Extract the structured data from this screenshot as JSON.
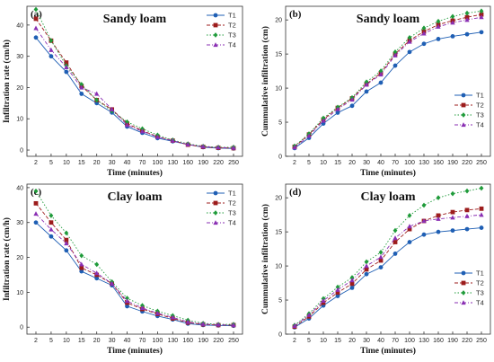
{
  "figure": {
    "panels_order": [
      "a",
      "b",
      "c",
      "d"
    ]
  },
  "chart_data": [
    {
      "id": "a",
      "letter": "(a)",
      "type": "line",
      "title": "Sandy loam",
      "xlabel": "Time (minutes)",
      "ylabel": "Infiltration rate (cm/h)",
      "categories": [
        "2",
        "5",
        "10",
        "15",
        "20",
        "30",
        "40",
        "70",
        "100",
        "130",
        "160",
        "190",
        "220",
        "250"
      ],
      "ylim": [
        -2,
        46
      ],
      "yticks": [
        0,
        10,
        20,
        30,
        40
      ],
      "grid": false,
      "legend": "top-right",
      "series": [
        {
          "name": "T1",
          "color": "#1f5fb4",
          "marker": "circle",
          "dash": "solid",
          "values": [
            36,
            30,
            25,
            18,
            15,
            12,
            7.5,
            5.5,
            3.8,
            2.8,
            1.8,
            0.9,
            0.6,
            0.5
          ]
        },
        {
          "name": "T2",
          "color": "#9c1c1c",
          "marker": "square",
          "dash": "dash",
          "values": [
            42,
            35,
            28,
            20.5,
            16,
            13,
            8.5,
            6.2,
            4.3,
            3.0,
            1.7,
            1.0,
            0.7,
            0.6
          ]
        },
        {
          "name": "T3",
          "color": "#1f9b3a",
          "marker": "diamond",
          "dash": "dot",
          "values": [
            45,
            35,
            27,
            21,
            16,
            12.5,
            9,
            6.8,
            4.8,
            3.2,
            2.0,
            1.2,
            0.9,
            0.9
          ]
        },
        {
          "name": "T4",
          "color": "#8a2fb3",
          "marker": "triangle",
          "dash": "dashdot",
          "values": [
            39,
            32,
            26.5,
            20,
            18,
            13,
            8,
            6.0,
            4.2,
            3.0,
            1.8,
            1.1,
            0.8,
            0.7
          ]
        }
      ]
    },
    {
      "id": "b",
      "letter": "(b)",
      "type": "line",
      "title": "Sandy loam",
      "xlabel": "Time (minutes)",
      "ylabel": "Cummulative infiltration (cm)",
      "categories": [
        "2",
        "5",
        "10",
        "15",
        "20",
        "30",
        "40",
        "70",
        "100",
        "130",
        "160",
        "190",
        "220",
        "250"
      ],
      "ylim": [
        0,
        22
      ],
      "yticks": [
        0,
        5,
        10,
        15,
        20
      ],
      "grid": false,
      "legend": "bottom-right",
      "series": [
        {
          "name": "T1",
          "color": "#1f5fb4",
          "marker": "circle",
          "dash": "solid",
          "values": [
            1.2,
            2.7,
            4.8,
            6.4,
            7.4,
            9.5,
            10.8,
            13.3,
            15.3,
            16.5,
            17.2,
            17.6,
            17.9,
            18.2
          ]
        },
        {
          "name": "T2",
          "color": "#9c1c1c",
          "marker": "square",
          "dash": "dash",
          "values": [
            1.4,
            3.2,
            5.4,
            7.1,
            8.5,
            10.6,
            12.2,
            15.0,
            17.0,
            18.3,
            19.3,
            19.9,
            20.4,
            20.8
          ]
        },
        {
          "name": "T3",
          "color": "#1f9b3a",
          "marker": "diamond",
          "dash": "dot",
          "values": [
            1.5,
            3.3,
            5.6,
            7.2,
            8.6,
            10.9,
            12.5,
            15.3,
            17.4,
            18.8,
            19.8,
            20.5,
            21.0,
            21.3
          ]
        },
        {
          "name": "T4",
          "color": "#8a2fb3",
          "marker": "triangle",
          "dash": "dashdot",
          "values": [
            1.3,
            3.0,
            5.2,
            6.9,
            8.3,
            10.5,
            12.0,
            14.8,
            16.8,
            18.0,
            19.0,
            19.6,
            20.0,
            20.4
          ]
        }
      ]
    },
    {
      "id": "c",
      "letter": "(c)",
      "type": "line",
      "title": "Clay loam",
      "xlabel": "Time (minutes)",
      "ylabel": "Infiltration rate (cm/h)",
      "categories": [
        "2",
        "5",
        "10",
        "15",
        "20",
        "30",
        "40",
        "70",
        "100",
        "130",
        "160",
        "190",
        "220",
        "250"
      ],
      "ylim": [
        -2,
        41
      ],
      "yticks": [
        0,
        10,
        20,
        30,
        40
      ],
      "grid": false,
      "legend": "top-right",
      "series": [
        {
          "name": "T1",
          "color": "#1f5fb4",
          "marker": "circle",
          "dash": "solid",
          "values": [
            30,
            26,
            22,
            16,
            14,
            12,
            6,
            4.5,
            3.2,
            2.2,
            1.0,
            0.6,
            0.5,
            0.4
          ]
        },
        {
          "name": "T2",
          "color": "#9c1c1c",
          "marker": "square",
          "dash": "dash",
          "values": [
            35.5,
            30,
            25,
            17,
            15,
            12.5,
            7,
            5.2,
            3.8,
            2.5,
            1.3,
            0.8,
            0.6,
            0.6
          ]
        },
        {
          "name": "T3",
          "color": "#1f9b3a",
          "marker": "diamond",
          "dash": "dot",
          "values": [
            39,
            32,
            27,
            20.5,
            18,
            13,
            8.3,
            6.2,
            4.6,
            3.3,
            2.0,
            1.1,
            0.8,
            0.8
          ]
        },
        {
          "name": "T4",
          "color": "#8a2fb3",
          "marker": "triangle",
          "dash": "dashdot",
          "values": [
            32.5,
            28,
            24,
            18,
            15.5,
            12.5,
            7.5,
            5.5,
            4.0,
            2.8,
            1.5,
            0.9,
            0.7,
            0.6
          ]
        }
      ]
    },
    {
      "id": "d",
      "letter": "(d)",
      "type": "line",
      "title": "Clay loam",
      "xlabel": "Time (minutes)",
      "ylabel": "Cummulative infiltration (cm)",
      "categories": [
        "2",
        "5",
        "10",
        "15",
        "20",
        "30",
        "40",
        "70",
        "100",
        "130",
        "160",
        "190",
        "220",
        "250"
      ],
      "ylim": [
        0,
        22
      ],
      "yticks": [
        0,
        5,
        10,
        15,
        20
      ],
      "grid": false,
      "legend": "bottom-right",
      "series": [
        {
          "name": "T1",
          "color": "#1f5fb4",
          "marker": "circle",
          "dash": "solid",
          "values": [
            1.0,
            2.3,
            4.2,
            5.6,
            6.8,
            8.8,
            9.8,
            11.8,
            13.5,
            14.6,
            15.0,
            15.2,
            15.4,
            15.6
          ]
        },
        {
          "name": "T2",
          "color": "#9c1c1c",
          "marker": "square",
          "dash": "dash",
          "values": [
            1.1,
            2.6,
            4.6,
            6.1,
            7.4,
            9.5,
            10.8,
            13.5,
            15.4,
            16.6,
            17.4,
            17.9,
            18.2,
            18.4
          ]
        },
        {
          "name": "T3",
          "color": "#1f9b3a",
          "marker": "diamond",
          "dash": "dot",
          "values": [
            1.3,
            3.0,
            5.2,
            6.9,
            8.3,
            10.6,
            12.0,
            15.2,
            17.4,
            18.9,
            20.0,
            20.6,
            21.0,
            21.4
          ]
        },
        {
          "name": "T4",
          "color": "#8a2fb3",
          "marker": "triangle",
          "dash": "dashdot",
          "values": [
            1.2,
            2.8,
            4.9,
            6.5,
            7.9,
            10.0,
            11.3,
            14.1,
            15.8,
            16.6,
            16.9,
            17.1,
            17.3,
            17.5
          ]
        }
      ]
    }
  ]
}
